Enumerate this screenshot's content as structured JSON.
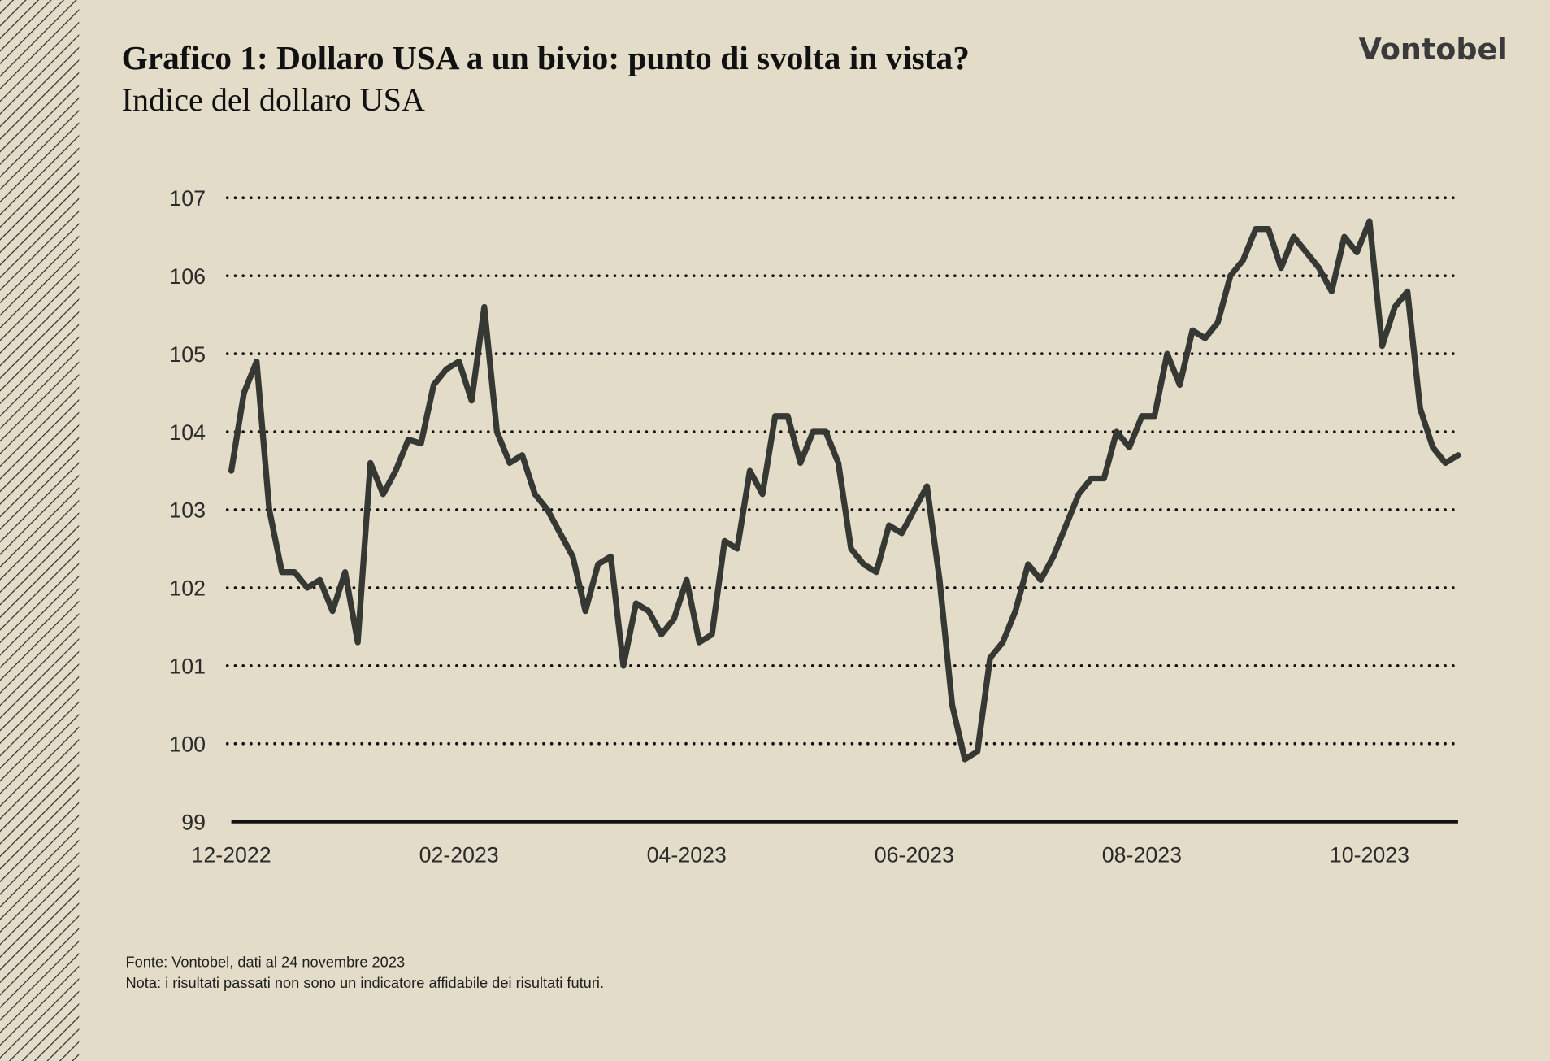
{
  "chart_data": {
    "type": "line",
    "title": "Grafico 1: Dollaro USA a un bivio: punto di svolta in vista?",
    "subtitle": "Indice del dollaro USA",
    "brand": "Vontobel",
    "source": "Fonte: Vontobel, dati al 24 novembre 2023",
    "note": "Nota: i risultati passati non sono un indicatore affidabile dei risultati futuri.",
    "categories": [
      "12-2022",
      null,
      null,
      null,
      null,
      null,
      null,
      null,
      null,
      null,
      null,
      null,
      null,
      null,
      null,
      null,
      null,
      null,
      "02-2023",
      null,
      null,
      null,
      null,
      null,
      null,
      null,
      null,
      null,
      null,
      null,
      null,
      null,
      null,
      null,
      null,
      null,
      "04-2023",
      null,
      null,
      null,
      null,
      null,
      null,
      null,
      null,
      null,
      null,
      null,
      null,
      null,
      null,
      null,
      null,
      null,
      "06-2023",
      null,
      null,
      null,
      null,
      null,
      null,
      null,
      null,
      null,
      null,
      null,
      null,
      null,
      null,
      null,
      null,
      null,
      "08-2023",
      null,
      null,
      null,
      null,
      null,
      null,
      null,
      null,
      null,
      null,
      null,
      null,
      null,
      null,
      null,
      null,
      null,
      "10-2023",
      null,
      null,
      null,
      null,
      null,
      null,
      null
    ],
    "series": [
      {
        "name": "Indice del dollaro USA",
        "color": "#363834",
        "values": [
          103.5,
          104.5,
          104.9,
          103.0,
          102.2,
          102.2,
          102.0,
          102.1,
          101.7,
          102.2,
          101.3,
          103.6,
          103.2,
          103.5,
          103.9,
          103.85,
          104.6,
          104.8,
          104.9,
          104.4,
          105.6,
          104.0,
          103.6,
          103.7,
          103.2,
          103.0,
          102.7,
          102.4,
          101.7,
          102.3,
          102.4,
          101.0,
          101.8,
          101.7,
          101.4,
          101.6,
          102.1,
          101.3,
          101.4,
          102.6,
          102.5,
          103.5,
          103.2,
          104.2,
          104.2,
          103.6,
          104.0,
          104.0,
          103.6,
          102.5,
          102.3,
          102.2,
          102.8,
          102.7,
          103.0,
          103.3,
          102.1,
          100.5,
          99.8,
          99.9,
          101.1,
          101.3,
          101.7,
          102.3,
          102.1,
          102.4,
          102.8,
          103.2,
          103.4,
          103.4,
          104.0,
          103.8,
          104.2,
          104.2,
          105.0,
          104.6,
          105.3,
          105.2,
          105.4,
          106.0,
          106.2,
          106.6,
          106.6,
          106.1,
          106.5,
          106.3,
          106.1,
          105.8,
          106.5,
          106.3,
          106.7,
          105.1,
          105.6,
          105.8,
          104.3,
          103.8,
          103.6,
          103.7
        ]
      }
    ],
    "ylim": [
      99,
      107
    ],
    "yticks": [
      99,
      100,
      101,
      102,
      103,
      104,
      105,
      106,
      107
    ],
    "grid": true
  }
}
